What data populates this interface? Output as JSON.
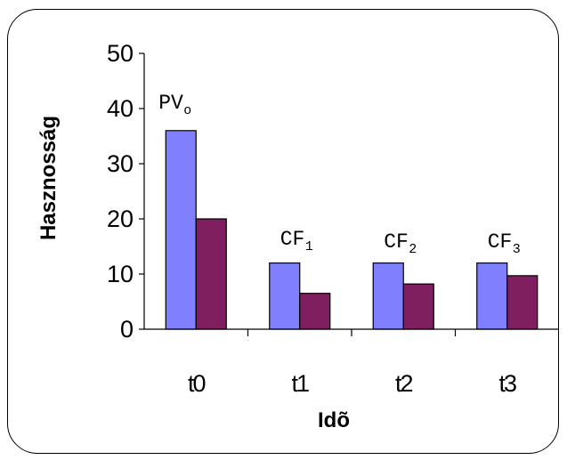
{
  "chart_data": {
    "type": "bar",
    "categories": [
      "t0",
      "t1",
      "t2",
      "t3"
    ],
    "series": [
      {
        "values": [
          36,
          12,
          12,
          12
        ],
        "color": "#8080ff"
      },
      {
        "values": [
          20,
          6.5,
          8.2,
          9.7
        ],
        "color": "#7f1f5f"
      }
    ],
    "xlabel": "Idõ",
    "ylabel": "Hasznosság",
    "ylim": [
      0,
      50
    ],
    "yticks": [
      0,
      10,
      20,
      30,
      40,
      50
    ],
    "grid": false,
    "annotations": [
      {
        "category": "t0",
        "text": "PV",
        "sub": "o"
      },
      {
        "category": "t1",
        "text": "CF",
        "sub": "1"
      },
      {
        "category": "t2",
        "text": "CF",
        "sub": "2"
      },
      {
        "category": "t3",
        "text": "CF",
        "sub": "3"
      }
    ]
  }
}
